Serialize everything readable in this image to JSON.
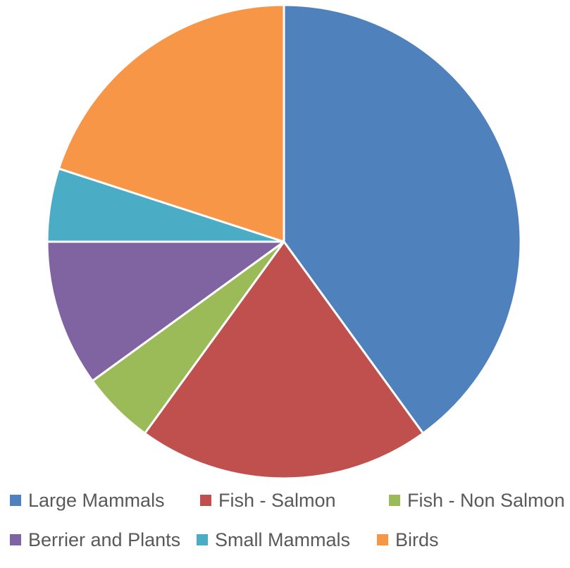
{
  "chart_data": {
    "type": "pie",
    "title": "",
    "categories": [
      "Large Mammals",
      "Fish - Salmon",
      "Fish - Non Salmon",
      "Berrier and Plants",
      "Small Mammals",
      "Birds"
    ],
    "values": [
      40,
      20,
      5,
      10,
      5,
      20
    ],
    "colors": [
      "#4f81bd",
      "#c0504d",
      "#9bbb59",
      "#8064a2",
      "#4bacc6",
      "#f79646"
    ],
    "start_angle_deg": 0,
    "direction": "clockwise",
    "legend_position": "bottom",
    "unit": "percent"
  }
}
